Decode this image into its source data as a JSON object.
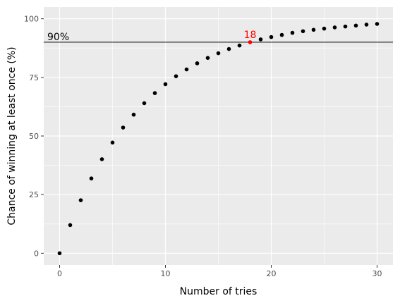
{
  "chart_data": {
    "type": "scatter",
    "title": "",
    "xlabel": "Number of tries",
    "ylabel": "Chance of winning at least once (%)",
    "xlim": [
      -1.5,
      31.5
    ],
    "ylim": [
      -5,
      105
    ],
    "x_ticks": [
      0,
      10,
      20,
      30
    ],
    "y_ticks": [
      0,
      25,
      50,
      75,
      100
    ],
    "grid": true,
    "background_color": "#ebebeb",
    "point_color": "#000000",
    "highlight_color": "#ff0000",
    "series": [
      {
        "x": [
          0,
          1,
          2,
          3,
          4,
          5,
          6,
          7,
          8,
          9,
          10,
          11,
          12,
          13,
          14,
          15,
          16,
          17,
          18,
          19,
          20,
          21,
          22,
          23,
          24,
          25,
          26,
          27,
          28,
          29,
          30
        ],
        "y": [
          0,
          12,
          22.6,
          31.9,
          40.1,
          47.2,
          53.6,
          59.1,
          64.0,
          68.3,
          72.1,
          75.5,
          78.4,
          81.0,
          83.3,
          85.3,
          87.1,
          88.6,
          90.0,
          91.2,
          92.2,
          93.1,
          94.0,
          94.7,
          95.3,
          95.8,
          96.3,
          96.7,
          97.1,
          97.5,
          97.8
        ]
      }
    ],
    "reference_line": {
      "y": 90,
      "label": "90%"
    },
    "highlight": {
      "x": 18,
      "y": 90.0,
      "label": "18"
    }
  }
}
